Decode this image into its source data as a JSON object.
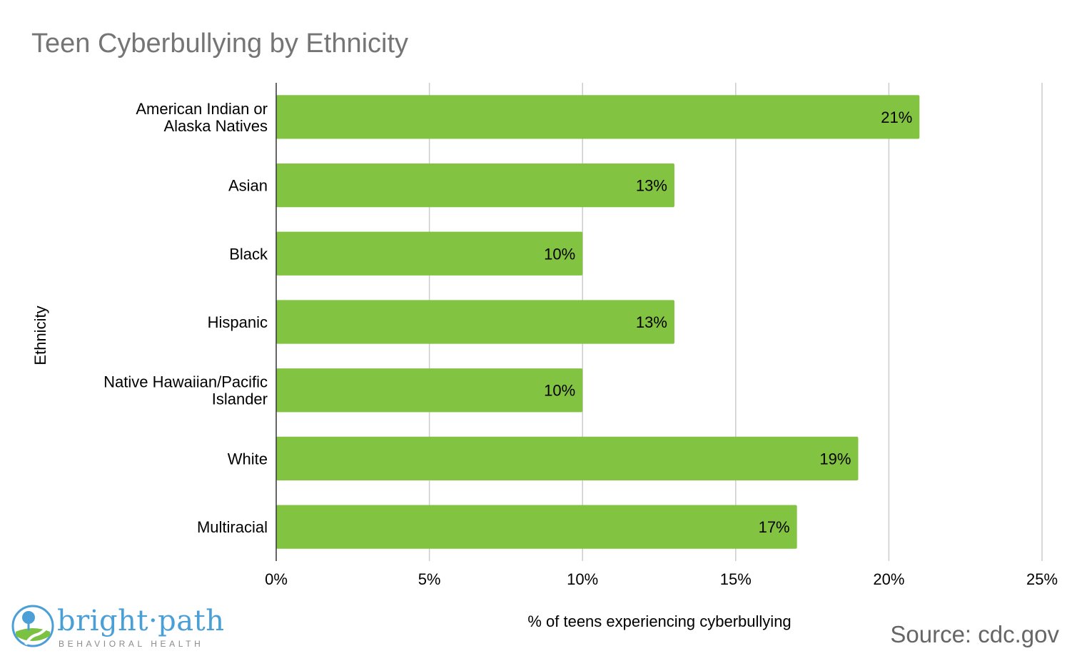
{
  "chart_data": {
    "type": "bar",
    "orientation": "horizontal",
    "title": "Teen Cyberbullying by Ethnicity",
    "xlabel": "% of teens experiencing cyberbullying",
    "ylabel": "Ethnicity",
    "categories": [
      [
        "American Indian or",
        "Alaska Natives"
      ],
      [
        "Asian"
      ],
      [
        "Black"
      ],
      [
        "Hispanic"
      ],
      [
        "Native Hawaiian/Pacific",
        "Islander"
      ],
      [
        "White"
      ],
      [
        "Multiracial"
      ]
    ],
    "values": [
      21,
      13,
      10,
      13,
      10,
      19,
      17
    ],
    "value_labels": [
      "21%",
      "13%",
      "10%",
      "13%",
      "10%",
      "19%",
      "17%"
    ],
    "xlim": [
      0,
      25
    ],
    "ticks": [
      0,
      5,
      10,
      15,
      20,
      25
    ],
    "tick_labels": [
      "0%",
      "5%",
      "10%",
      "15%",
      "20%",
      "25%"
    ],
    "grid": true,
    "bar_color": "#82c341",
    "grid_color": "#cccccc"
  },
  "source": "Source: cdc.gov",
  "logo": {
    "name": "bright·path",
    "tagline": "BEHAVIORAL HEALTH",
    "brand_color": "#4a9fd6"
  }
}
